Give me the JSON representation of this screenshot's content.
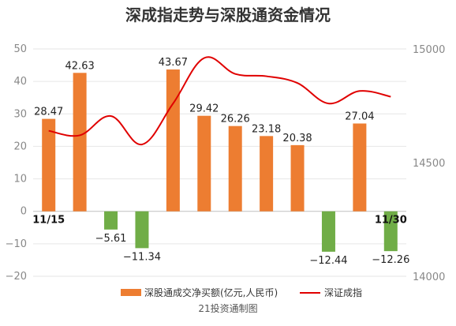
{
  "title": "深成指走势与深股通资金情况",
  "source": "21投资通制图",
  "colors": {
    "positive_bar": "#ED7D31",
    "negative_bar": "#70AD47",
    "line": "#E00000",
    "grid": "#E6E6E6",
    "axis": "#BFBFBF"
  },
  "legend": {
    "bar_label": "深股通成交净买额(亿元,人民币)",
    "line_label": "深证成指",
    "position": "bottom"
  },
  "chart_data": {
    "type": "bar+line",
    "title": "深成指走势与深股通资金情况",
    "categories": [
      "11/15",
      "",
      "",
      "",
      "",
      "",
      "",
      "",
      "",
      "",
      "",
      "11/30"
    ],
    "series": [
      {
        "name": "深股通成交净买额(亿元,人民币)",
        "type": "bar",
        "axis": "left",
        "values": [
          28.47,
          42.63,
          -5.61,
          -11.34,
          43.67,
          29.42,
          26.26,
          23.18,
          20.38,
          -12.44,
          27.04,
          -12.26
        ],
        "labels": [
          "28.47",
          "42.63",
          "−5.61",
          "−11.34",
          "43.67",
          "29.42",
          "26.26",
          "23.18",
          "20.38",
          "−12.44",
          "27.04",
          "−12.26"
        ]
      },
      {
        "name": "深证成指",
        "type": "line",
        "axis": "right",
        "smooth": true,
        "values": [
          14640,
          14620,
          14705,
          14580,
          14760,
          14960,
          14890,
          14880,
          14850,
          14760,
          14815,
          14790
        ]
      }
    ],
    "left_axis": {
      "min": -20,
      "max": 50,
      "step": 10,
      "ticks": [
        "−20",
        "−10",
        "0",
        "10",
        "20",
        "30",
        "40",
        "50"
      ]
    },
    "right_axis": {
      "min": 14000,
      "max": 15000,
      "ticks": [
        "14000",
        "14500",
        "15000"
      ]
    },
    "grid": true
  }
}
